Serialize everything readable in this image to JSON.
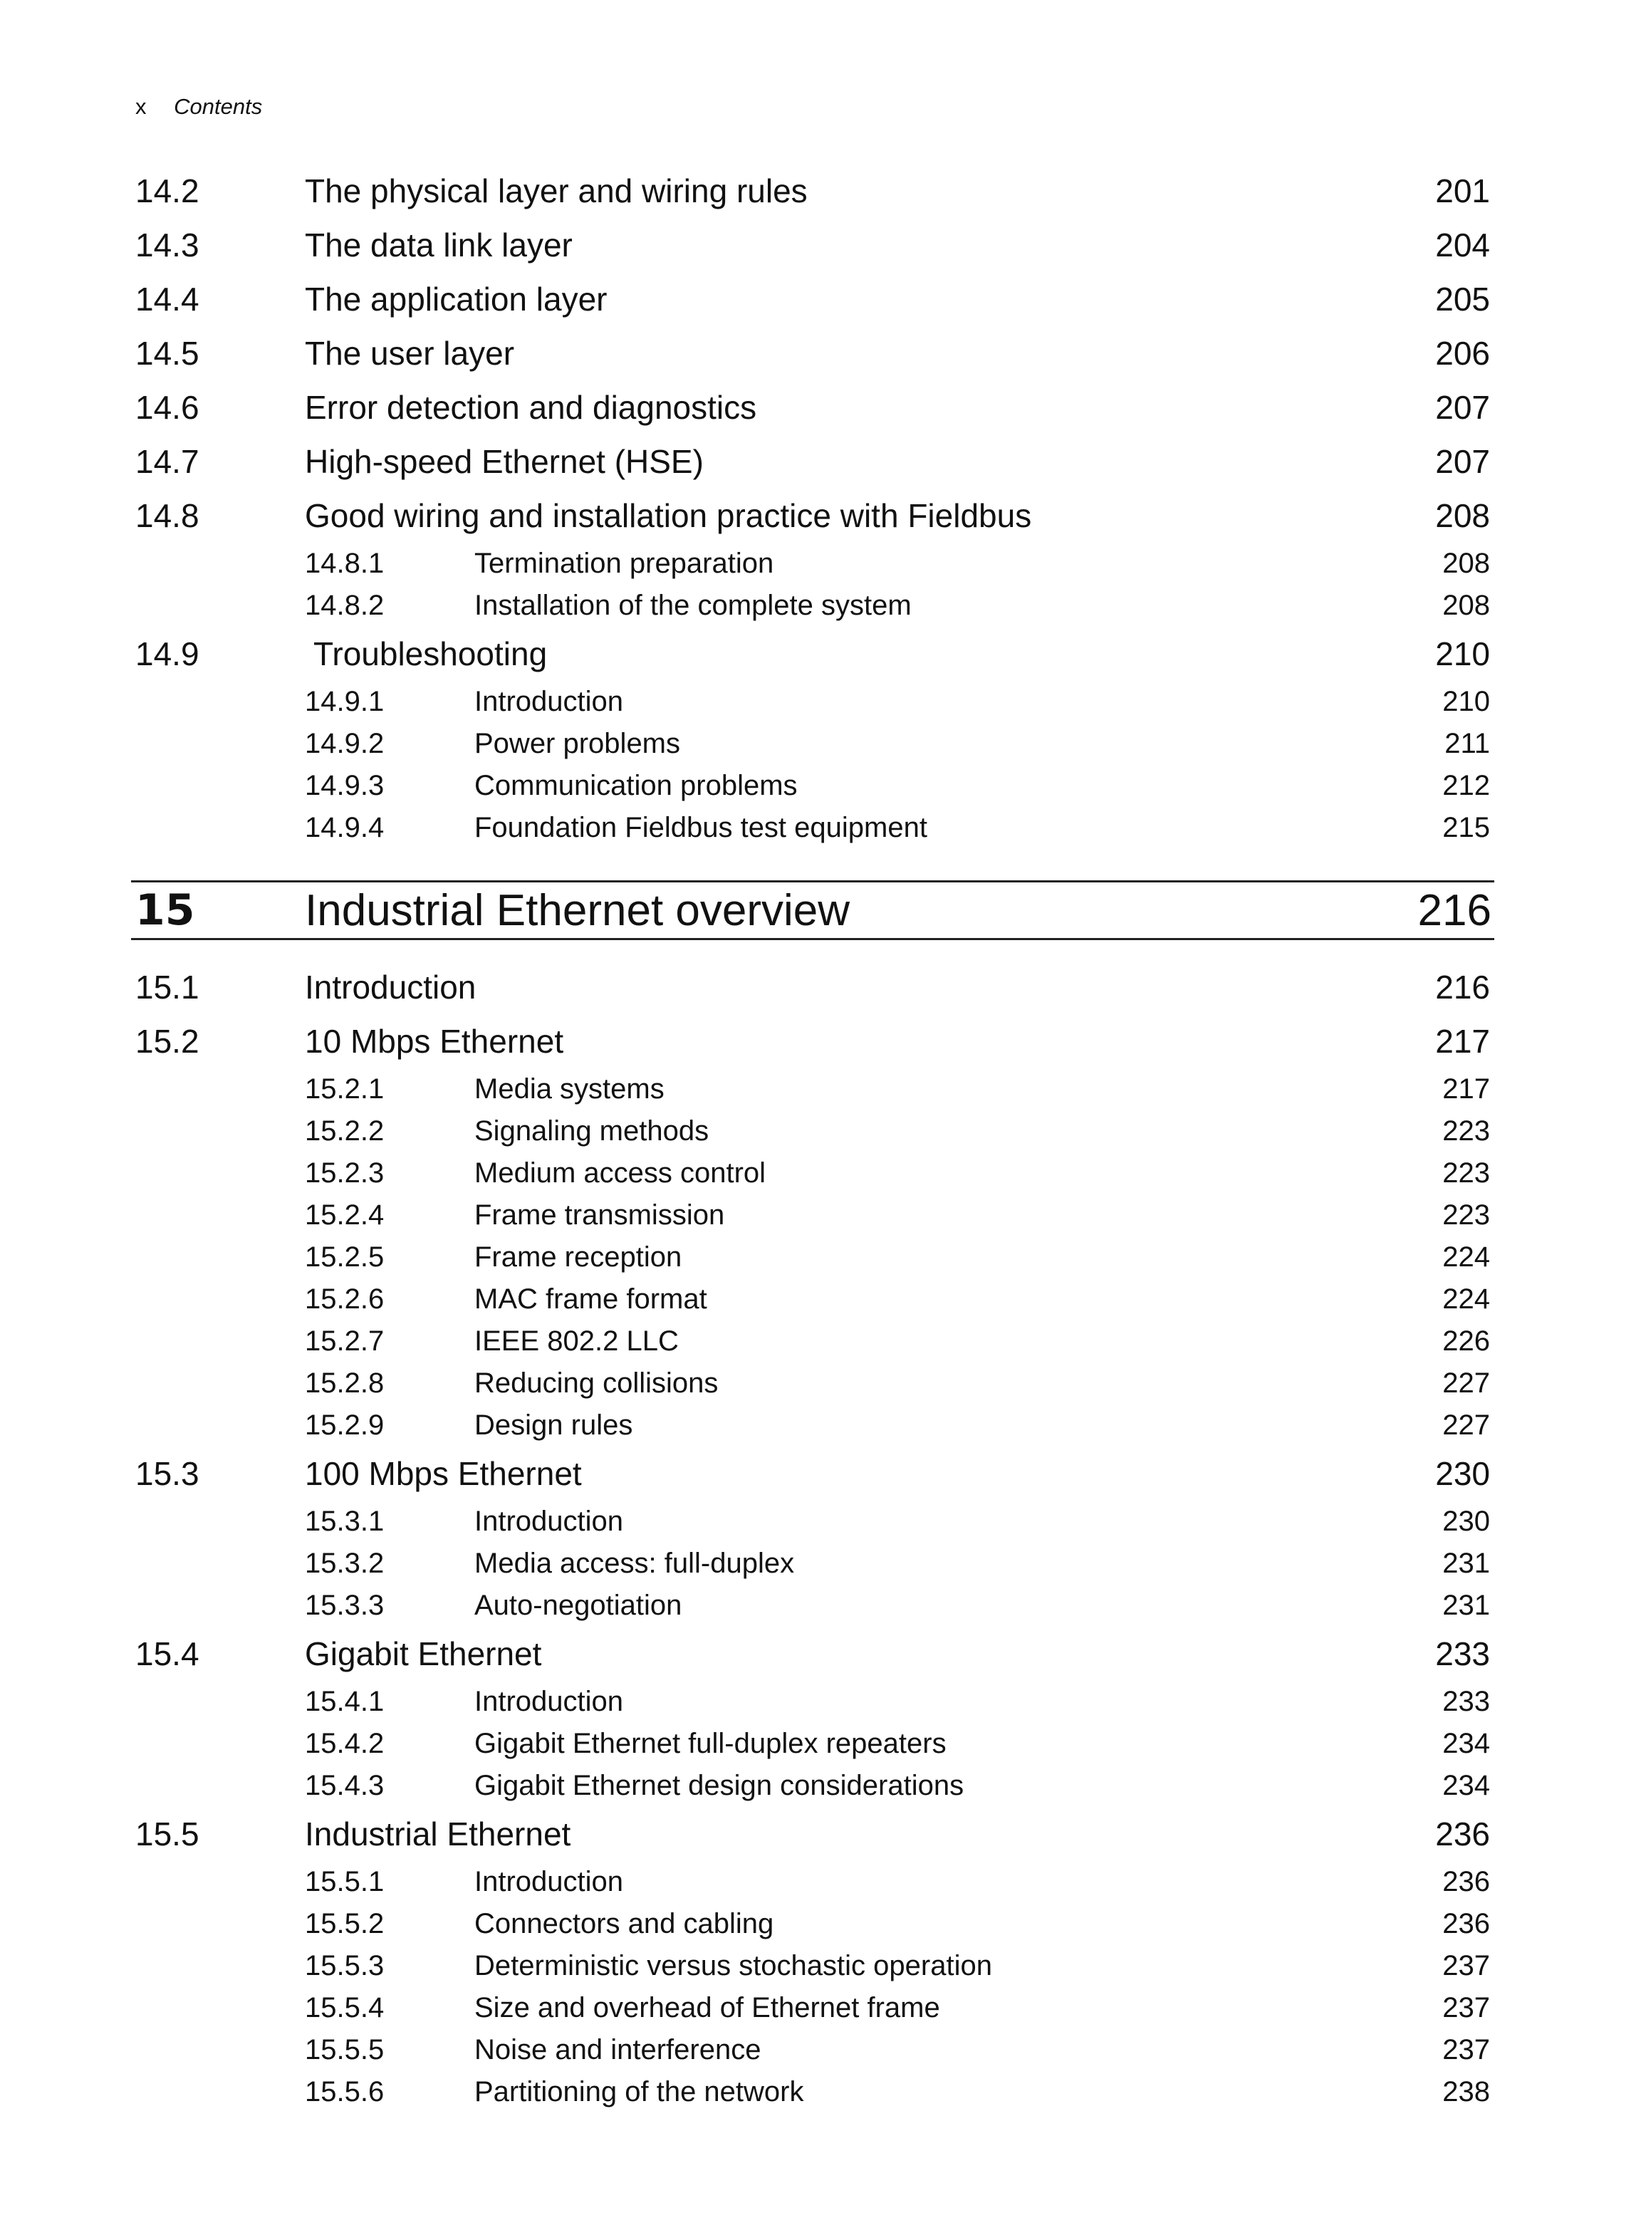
{
  "header": {
    "folio": "x",
    "title": "Contents"
  },
  "entries_before": [
    {
      "level": 1,
      "num": "14.2",
      "title": "The physical layer and wiring rules",
      "page": "201"
    },
    {
      "level": 1,
      "num": "14.3",
      "title": "The data link layer",
      "page": "204"
    },
    {
      "level": 1,
      "num": "14.4",
      "title": "The application layer",
      "page": "205"
    },
    {
      "level": 1,
      "num": "14.5",
      "title": "The user layer",
      "page": "206"
    },
    {
      "level": 1,
      "num": "14.6",
      "title": "Error detection and diagnostics",
      "page": "207"
    },
    {
      "level": 1,
      "num": "14.7",
      "title": "High-speed Ethernet (HSE)",
      "page": "207"
    },
    {
      "level": 1,
      "num": "14.8",
      "title": "Good wiring and installation practice with Fieldbus",
      "page": "208"
    },
    {
      "level": 2,
      "num": "14.8.1",
      "title": "Termination preparation",
      "page": "208"
    },
    {
      "level": 2,
      "num": "14.8.2",
      "title": "Installation of the complete system",
      "page": "208"
    },
    {
      "level": 1,
      "num": "14.9",
      "title": "Troubleshooting",
      "page": "210"
    },
    {
      "level": 2,
      "num": "14.9.1",
      "title": "Introduction",
      "page": "210"
    },
    {
      "level": 2,
      "num": "14.9.2",
      "title": "Power problems",
      "page": "211"
    },
    {
      "level": 2,
      "num": "14.9.3",
      "title": "Communication problems",
      "page": "212"
    },
    {
      "level": 2,
      "num": "14.9.4",
      "title": "Foundation Fieldbus test equipment",
      "page": "215"
    }
  ],
  "chapter": {
    "num": "15",
    "title": "Industrial Ethernet overview",
    "page": "216"
  },
  "entries_after": [
    {
      "level": 1,
      "num": "15.1",
      "title": "Introduction",
      "page": "216"
    },
    {
      "level": 1,
      "num": "15.2",
      "title": "10 Mbps Ethernet",
      "page": "217"
    },
    {
      "level": 2,
      "num": "15.2.1",
      "title": "Media systems",
      "page": "217"
    },
    {
      "level": 2,
      "num": "15.2.2",
      "title": "Signaling methods",
      "page": "223"
    },
    {
      "level": 2,
      "num": "15.2.3",
      "title": "Medium access control",
      "page": "223"
    },
    {
      "level": 2,
      "num": "15.2.4",
      "title": "Frame transmission",
      "page": "223"
    },
    {
      "level": 2,
      "num": "15.2.5",
      "title": "Frame reception",
      "page": "224"
    },
    {
      "level": 2,
      "num": "15.2.6",
      "title": "MAC frame format",
      "page": "224"
    },
    {
      "level": 2,
      "num": "15.2.7",
      "title": "IEEE 802.2 LLC",
      "page": "226"
    },
    {
      "level": 2,
      "num": "15.2.8",
      "title": "Reducing collisions",
      "page": "227"
    },
    {
      "level": 2,
      "num": "15.2.9",
      "title": "Design rules",
      "page": "227"
    },
    {
      "level": 1,
      "num": "15.3",
      "title": "100 Mbps Ethernet",
      "page": "230"
    },
    {
      "level": 2,
      "num": "15.3.1",
      "title": "Introduction",
      "page": "230"
    },
    {
      "level": 2,
      "num": "15.3.2",
      "title": "Media access: full-duplex",
      "page": "231"
    },
    {
      "level": 2,
      "num": "15.3.3",
      "title": "Auto-negotiation",
      "page": "231"
    },
    {
      "level": 1,
      "num": "15.4",
      "title": "Gigabit Ethernet",
      "page": "233"
    },
    {
      "level": 2,
      "num": "15.4.1",
      "title": "Introduction",
      "page": "233"
    },
    {
      "level": 2,
      "num": "15.4.2",
      "title": "Gigabit Ethernet full-duplex repeaters",
      "page": "234"
    },
    {
      "level": 2,
      "num": "15.4.3",
      "title": "Gigabit Ethernet design considerations",
      "page": "234"
    },
    {
      "level": 1,
      "num": "15.5",
      "title": "Industrial Ethernet",
      "page": "236"
    },
    {
      "level": 2,
      "num": "15.5.1",
      "title": "Introduction",
      "page": "236"
    },
    {
      "level": 2,
      "num": "15.5.2",
      "title": "Connectors and cabling",
      "page": "236"
    },
    {
      "level": 2,
      "num": "15.5.3",
      "title": "Deterministic versus stochastic operation",
      "page": "237"
    },
    {
      "level": 2,
      "num": "15.5.4",
      "title": "Size and overhead of Ethernet frame",
      "page": "237"
    },
    {
      "level": 2,
      "num": "15.5.5",
      "title": "Noise and interference",
      "page": "237"
    },
    {
      "level": 2,
      "num": "15.5.6",
      "title": "Partitioning of the network",
      "page": "238"
    }
  ]
}
